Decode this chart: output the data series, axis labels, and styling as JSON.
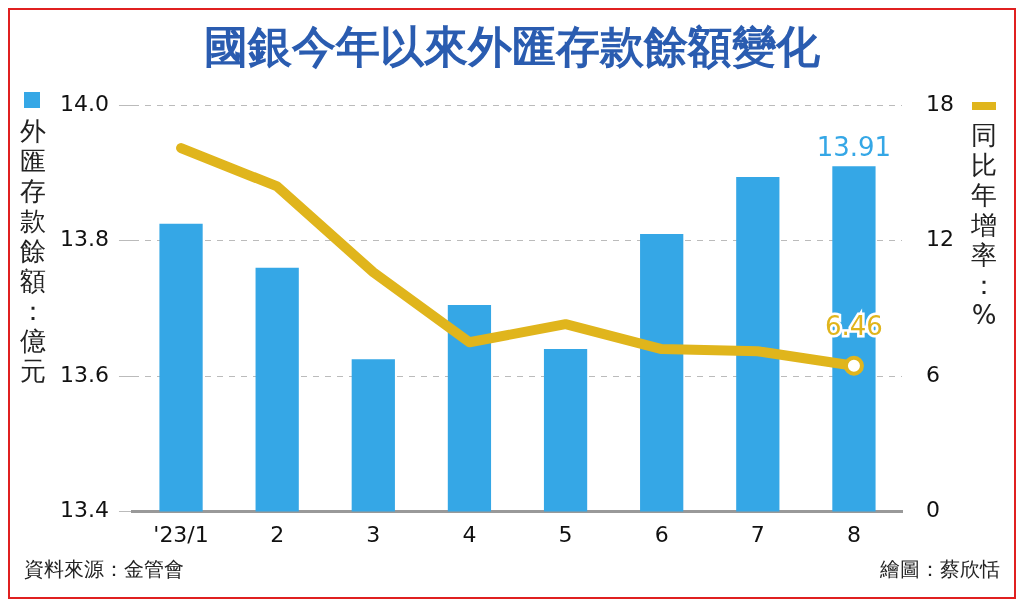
{
  "chart_data": {
    "type": "bar",
    "title": "國銀今年以來外匯存款餘額變化",
    "ylabel": "外匯存款餘額：億元",
    "y2label": "同比年增率：%",
    "categories": [
      "'23/1",
      "2",
      "3",
      "4",
      "5",
      "6",
      "7",
      "8"
    ],
    "series": [
      {
        "type": "bar",
        "color": "#35a7e6",
        "values": [
          13.825,
          13.76,
          13.625,
          13.705,
          13.64,
          13.81,
          13.894,
          13.91
        ],
        "value_labels": [
          null,
          null,
          null,
          null,
          null,
          null,
          null,
          "13.91"
        ]
      },
      {
        "type": "line",
        "axis": "y2",
        "color": "#e0b51c",
        "values": [
          16.1,
          14.4,
          10.6,
          7.5,
          8.3,
          7.2,
          7.1,
          6.46
        ],
        "value_labels": [
          null,
          null,
          null,
          null,
          null,
          null,
          null,
          "6.46"
        ]
      }
    ],
    "ylim": [
      13.4,
      14.0
    ],
    "yticks": [
      {
        "value": 13.4,
        "label": "13.4"
      },
      13.6,
      13.8,
      {
        "value": 14.0,
        "label": "14.0"
      }
    ],
    "y2lim": [
      0,
      18
    ],
    "y2ticks": [
      0,
      6,
      12,
      18
    ],
    "grid": "y",
    "annotations": [
      "資料來源：金管會",
      "繪圖：蔡欣恬"
    ]
  }
}
